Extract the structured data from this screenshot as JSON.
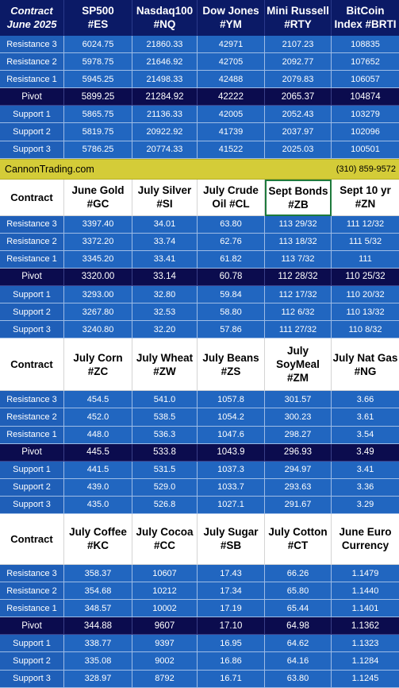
{
  "sections": [
    {
      "header": [
        "Contract\nJune 2025",
        "SP500\n#ES",
        "Nasdaq100\n#NQ",
        "Dow Jones\n#YM",
        "Mini Russell\n#RTY",
        "BitCoin\nIndex #BRTI"
      ],
      "rows": [
        {
          "label": "Resistance 3",
          "values": [
            "6024.75",
            "21860.33",
            "42971",
            "2107.23",
            "108835"
          ]
        },
        {
          "label": "Resistance 2",
          "values": [
            "5978.75",
            "21646.92",
            "42705",
            "2092.77",
            "107652"
          ]
        },
        {
          "label": "Resistance 1",
          "values": [
            "5945.25",
            "21498.33",
            "42488",
            "2079.83",
            "106057"
          ]
        },
        {
          "label": "Pivot",
          "values": [
            "5899.25",
            "21284.92",
            "42222",
            "2065.37",
            "104874"
          ]
        },
        {
          "label": "Support 1",
          "values": [
            "5865.75",
            "21136.33",
            "42005",
            "2052.43",
            "103279"
          ]
        },
        {
          "label": "Support 2",
          "values": [
            "5819.75",
            "20922.92",
            "41739",
            "2037.97",
            "102096"
          ]
        },
        {
          "label": "Support 3",
          "values": [
            "5786.25",
            "20774.33",
            "41522",
            "2025.03",
            "100501"
          ]
        }
      ]
    },
    {
      "header": [
        "Contract",
        "June Gold\n#GC",
        "July Silver\n#SI",
        "July Crude\nOil #CL",
        "Sept Bonds\n#ZB",
        "Sept 10 yr\n#ZN"
      ],
      "rows": [
        {
          "label": "Resistance 3",
          "values": [
            "3397.40",
            "34.01",
            "63.80",
            "113 29/32",
            "111 12/32"
          ]
        },
        {
          "label": "Resistance 2",
          "values": [
            "3372.20",
            "33.74",
            "62.76",
            "113 18/32",
            "111  5/32"
          ]
        },
        {
          "label": "Resistance 1",
          "values": [
            "3345.20",
            "33.41",
            "61.82",
            "113  7/32",
            "111"
          ]
        },
        {
          "label": "Pivot",
          "values": [
            "3320.00",
            "33.14",
            "60.78",
            "112 28/32",
            "110 25/32"
          ]
        },
        {
          "label": "Support 1",
          "values": [
            "3293.00",
            "32.80",
            "59.84",
            "112 17/32",
            "110 20/32"
          ]
        },
        {
          "label": "Support 2",
          "values": [
            "3267.80",
            "32.53",
            "58.80",
            "112  6/32",
            "110 13/32"
          ]
        },
        {
          "label": "Support 3",
          "values": [
            "3240.80",
            "32.20",
            "57.86",
            "111 27/32",
            "110  8/32"
          ]
        }
      ]
    },
    {
      "header": [
        "Contract",
        "July Corn\n#ZC",
        "July  Wheat\n#ZW",
        "July Beans\n#ZS",
        "July\nSoyMeal\n#ZM",
        "July Nat Gas\n#NG"
      ],
      "rows": [
        {
          "label": "Resistance 3",
          "values": [
            "454.5",
            "541.0",
            "1057.8",
            "301.57",
            "3.66"
          ]
        },
        {
          "label": "Resistance 2",
          "values": [
            "452.0",
            "538.5",
            "1054.2",
            "300.23",
            "3.61"
          ]
        },
        {
          "label": "Resistance 1",
          "values": [
            "448.0",
            "536.3",
            "1047.6",
            "298.27",
            "3.54"
          ]
        },
        {
          "label": "Pivot",
          "values": [
            "445.5",
            "533.8",
            "1043.9",
            "296.93",
            "3.49"
          ]
        },
        {
          "label": "Support 1",
          "values": [
            "441.5",
            "531.5",
            "1037.3",
            "294.97",
            "3.41"
          ]
        },
        {
          "label": "Support 2",
          "values": [
            "439.0",
            "529.0",
            "1033.7",
            "293.63",
            "3.36"
          ]
        },
        {
          "label": "Support 3",
          "values": [
            "435.0",
            "526.8",
            "1027.1",
            "291.67",
            "3.29"
          ]
        }
      ]
    },
    {
      "header": [
        "Contract",
        "July Coffee\n#KC",
        "July Cocoa\n#CC",
        "July Sugar\n#SB",
        "July Cotton\n#CT",
        "June Euro\nCurrency"
      ],
      "rows": [
        {
          "label": "Resistance 3",
          "values": [
            "358.37",
            "10607",
            "17.43",
            "66.26",
            "1.1479"
          ]
        },
        {
          "label": "Resistance 2",
          "values": [
            "354.68",
            "10212",
            "17.34",
            "65.80",
            "1.1440"
          ]
        },
        {
          "label": "Resistance 1",
          "values": [
            "348.57",
            "10002",
            "17.19",
            "65.44",
            "1.1401"
          ]
        },
        {
          "label": "Pivot",
          "values": [
            "344.88",
            "9607",
            "17.10",
            "64.98",
            "1.1362"
          ]
        },
        {
          "label": "Support 1",
          "values": [
            "338.77",
            "9397",
            "16.95",
            "64.62",
            "1.1323"
          ]
        },
        {
          "label": "Support 2",
          "values": [
            "335.08",
            "9002",
            "16.86",
            "64.16",
            "1.1284"
          ]
        },
        {
          "label": "Support 3",
          "values": [
            "328.97",
            "8792",
            "16.71",
            "63.80",
            "1.1245"
          ]
        }
      ]
    }
  ],
  "banner": {
    "site": "CannonTrading.com",
    "phone": "(310) 859-9572"
  },
  "colors": {
    "header_dark": "#0b1a66",
    "row_blue": "#2166c0",
    "pivot": "#0b0c4e",
    "banner": "#d4cc38",
    "selected_border": "#1e7a3c"
  }
}
